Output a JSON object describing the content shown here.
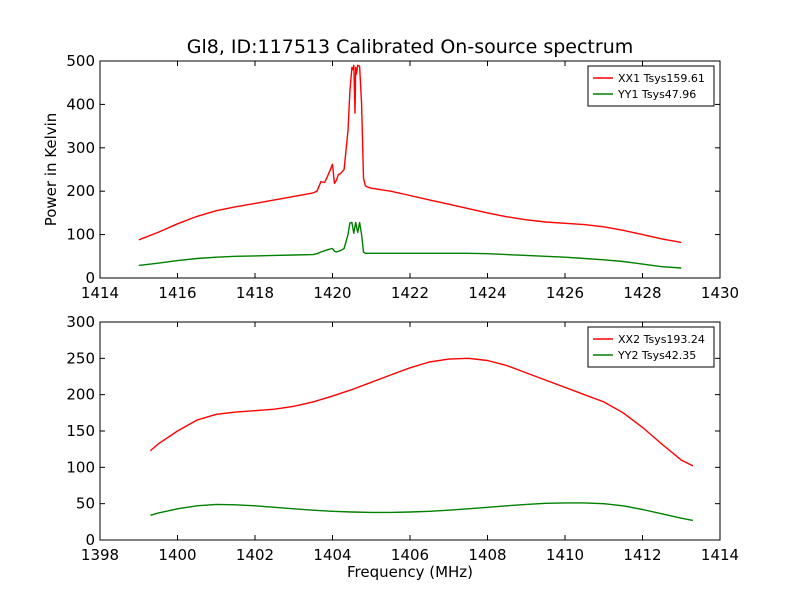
{
  "chart_data": [
    {
      "type": "line",
      "title": "Gl8, ID:117513 Calibrated On-source spectrum",
      "xlabel": "",
      "ylabel": "Power in Kelvin",
      "xlim": [
        1414,
        1430
      ],
      "ylim": [
        0,
        500
      ],
      "xticks": [
        "1414",
        "1416",
        "1418",
        "1420",
        "1422",
        "1424",
        "1426",
        "1428",
        "1430"
      ],
      "yticks": [
        "0",
        "100",
        "200",
        "300",
        "400",
        "500"
      ],
      "grid": false,
      "legend_position": "top-right",
      "colors": [
        "#ff0000",
        "#008000"
      ],
      "series": [
        {
          "name": "XX1 Tsys159.61",
          "color": "#ff0000",
          "x": [
            1415.0,
            1415.5,
            1416.0,
            1416.5,
            1417.0,
            1417.5,
            1418.0,
            1418.5,
            1419.0,
            1419.5,
            1419.6,
            1419.7,
            1419.8,
            1419.9,
            1420.0,
            1420.05,
            1420.1,
            1420.15,
            1420.2,
            1420.3,
            1420.4,
            1420.45,
            1420.5,
            1420.52,
            1420.55,
            1420.58,
            1420.6,
            1420.62,
            1420.65,
            1420.7,
            1420.75,
            1420.8,
            1420.85,
            1420.9,
            1421.0,
            1421.5,
            1422.0,
            1422.5,
            1423.0,
            1423.5,
            1424.0,
            1424.5,
            1425.0,
            1425.5,
            1426.0,
            1426.5,
            1427.0,
            1427.5,
            1428.0,
            1428.5,
            1429.0
          ],
          "y": [
            88,
            105,
            125,
            142,
            155,
            164,
            172,
            180,
            188,
            196,
            200,
            222,
            220,
            240,
            262,
            218,
            225,
            238,
            240,
            250,
            340,
            430,
            485,
            480,
            490,
            380,
            485,
            470,
            490,
            488,
            400,
            230,
            212,
            210,
            207,
            200,
            190,
            180,
            170,
            160,
            150,
            141,
            134,
            129,
            126,
            123,
            118,
            110,
            100,
            90,
            82
          ]
        },
        {
          "name": "YY1 Tsys47.96",
          "color": "#008000",
          "x": [
            1415.0,
            1415.5,
            1416.0,
            1416.5,
            1417.0,
            1417.5,
            1418.0,
            1418.5,
            1419.0,
            1419.5,
            1419.6,
            1419.7,
            1419.8,
            1419.9,
            1420.0,
            1420.05,
            1420.1,
            1420.2,
            1420.3,
            1420.4,
            1420.45,
            1420.5,
            1420.55,
            1420.6,
            1420.65,
            1420.7,
            1420.75,
            1420.8,
            1420.85,
            1421.0,
            1421.5,
            1422.0,
            1422.5,
            1423.0,
            1423.5,
            1424.0,
            1424.5,
            1425.0,
            1425.5,
            1426.0,
            1426.5,
            1427.0,
            1427.5,
            1428.0,
            1428.5,
            1429.0
          ],
          "y": [
            29,
            34,
            40,
            45,
            48,
            50,
            51,
            52,
            53,
            54,
            56,
            60,
            63,
            66,
            68,
            62,
            60,
            63,
            68,
            100,
            127,
            128,
            103,
            128,
            105,
            128,
            100,
            60,
            57,
            57,
            57,
            57,
            57,
            57,
            57,
            56,
            54,
            52,
            50,
            48,
            45,
            42,
            38,
            32,
            26,
            23
          ]
        }
      ]
    },
    {
      "type": "line",
      "title": "",
      "xlabel": "Frequency (MHz)",
      "ylabel": "",
      "xlim": [
        1398,
        1414
      ],
      "ylim": [
        0,
        300
      ],
      "xticks": [
        "1398",
        "1400",
        "1402",
        "1404",
        "1406",
        "1408",
        "1410",
        "1412",
        "1414"
      ],
      "yticks": [
        "0",
        "50",
        "100",
        "150",
        "200",
        "250",
        "300"
      ],
      "grid": false,
      "legend_position": "top-right",
      "colors": [
        "#ff0000",
        "#008000"
      ],
      "series": [
        {
          "name": "XX2 Tsys193.24",
          "color": "#ff0000",
          "x": [
            1399.3,
            1399.5,
            1400.0,
            1400.5,
            1401.0,
            1401.5,
            1402.0,
            1402.5,
            1403.0,
            1403.5,
            1404.0,
            1404.5,
            1405.0,
            1405.5,
            1406.0,
            1406.5,
            1407.0,
            1407.5,
            1408.0,
            1408.5,
            1409.0,
            1409.5,
            1410.0,
            1410.5,
            1411.0,
            1411.5,
            1412.0,
            1412.5,
            1413.0,
            1413.3
          ],
          "y": [
            123,
            132,
            150,
            165,
            173,
            176,
            178,
            180,
            184,
            190,
            198,
            207,
            217,
            227,
            237,
            245,
            249,
            250,
            247,
            240,
            230,
            220,
            210,
            200,
            190,
            175,
            155,
            132,
            110,
            102
          ]
        },
        {
          "name": "YY2 Tsys42.35",
          "color": "#008000",
          "x": [
            1399.3,
            1399.5,
            1400.0,
            1400.5,
            1401.0,
            1401.5,
            1402.0,
            1402.5,
            1403.0,
            1403.5,
            1404.0,
            1404.5,
            1405.0,
            1405.5,
            1406.0,
            1406.5,
            1407.0,
            1407.5,
            1408.0,
            1408.5,
            1409.0,
            1409.5,
            1410.0,
            1410.5,
            1411.0,
            1411.5,
            1412.0,
            1412.5,
            1413.0,
            1413.3
          ],
          "y": [
            34,
            37,
            43,
            47,
            49,
            48.5,
            47,
            45,
            43,
            41,
            39.5,
            38.5,
            38,
            38,
            38.5,
            39.5,
            41,
            43,
            45,
            47,
            49,
            50.5,
            51,
            51,
            50,
            47,
            42,
            36,
            30,
            27
          ]
        }
      ]
    }
  ]
}
